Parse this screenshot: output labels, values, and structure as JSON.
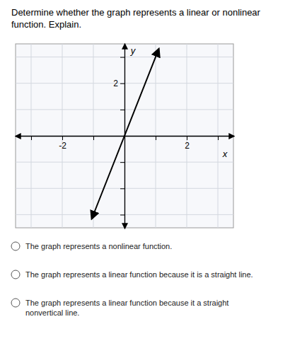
{
  "chart_data": {
    "type": "line",
    "title": "Determine whether the graph represents a linear or nonlinear\nfunction. Explain.",
    "xlabel": "x",
    "ylabel": "y",
    "x": [
      -1.05,
      1.1
    ],
    "values": [
      -3.15,
      3.3
    ],
    "color": "#000000",
    "marker": "arrow",
    "xlim": [
      -3.5,
      3.5
    ],
    "ylim": [
      -3.5,
      3.5
    ],
    "xticks": [
      {
        "value": -3,
        "label": null
      },
      -2,
      {
        "value": -1,
        "label": null
      },
      {
        "value": 0,
        "label": null
      },
      {
        "value": 1,
        "label": null
      },
      2,
      {
        "value": 3,
        "label": null
      }
    ],
    "yticks": [
      {
        "value": -3,
        "label": null
      },
      {
        "value": -2,
        "label": null
      },
      {
        "value": -1,
        "label": null
      },
      {
        "value": 0,
        "label": null
      },
      {
        "value": 1,
        "label": null
      },
      2,
      {
        "value": 3,
        "label": null
      }
    ],
    "grid": true,
    "annotations": [
      "The graph represents a nonlinear function.",
      "The graph represents a linear function because it is a straight line.",
      "The graph represents a linear function because it a straight\nnonvertical line."
    ]
  }
}
